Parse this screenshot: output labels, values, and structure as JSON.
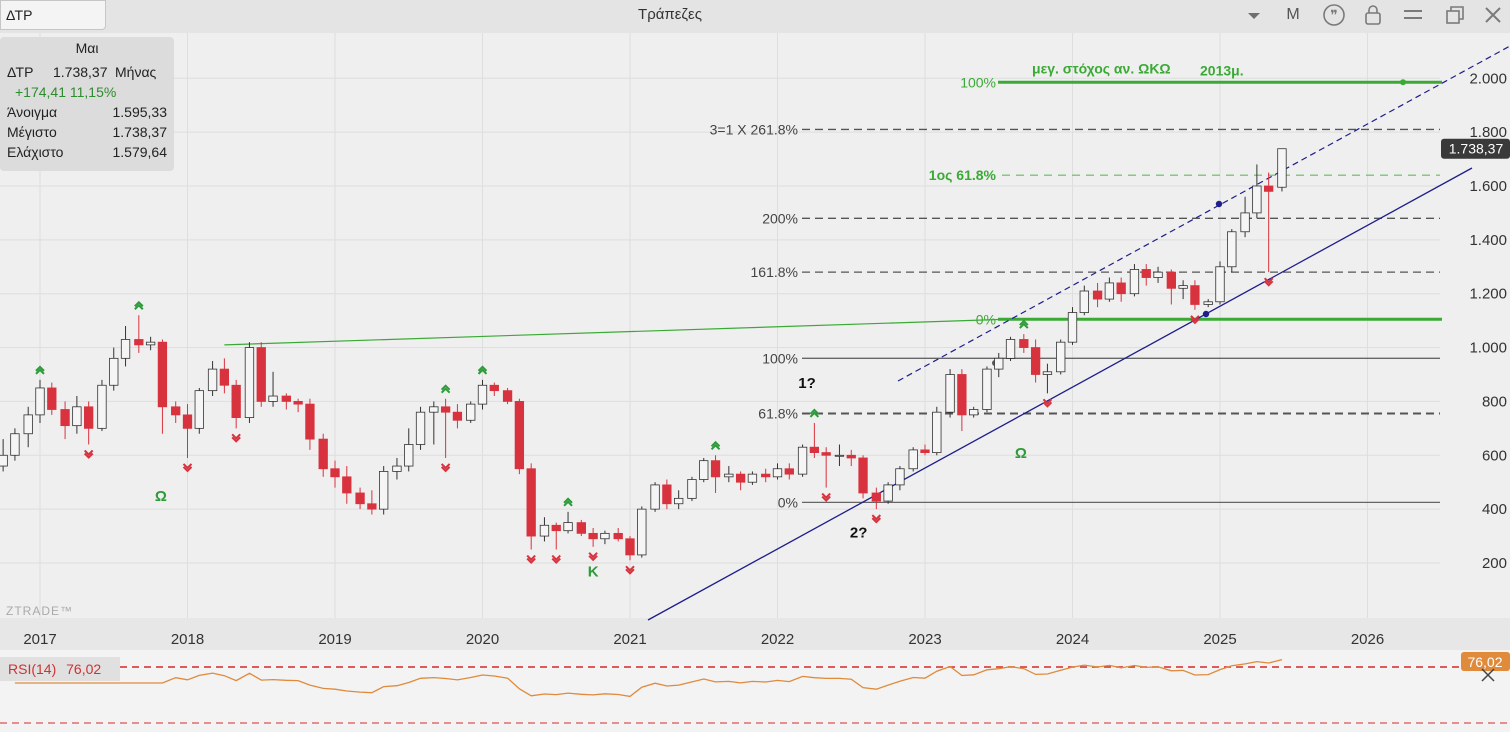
{
  "app": {
    "symbol": "ΔΤΡ",
    "title": "Τράπεζες",
    "mode_label": "M",
    "logo": "ZTRADE™"
  },
  "toolbar": {
    "icons": [
      "chevron-down-icon",
      "quote-icon",
      "lock-icon",
      "menu-icon",
      "window-restore-icon",
      "close-icon"
    ]
  },
  "infobox": {
    "month": "Μαι",
    "symbol": "ΔΤΡ",
    "close": "1.738,37",
    "period": "Μήνας",
    "change": "+174,41 11,15%",
    "open_label": "Άνοιγμα",
    "open": "1.595,33",
    "high_label": "Μέγιστο",
    "high": "1.738,37",
    "low_label": "Ελάχιστο",
    "low": "1.579,64"
  },
  "chart_data": {
    "type": "candlestick",
    "period": "monthly",
    "ylim": [
      80,
      2060
    ],
    "xlim": [
      2016.72,
      2026.95
    ],
    "y_ticks": [
      200,
      400,
      600,
      800,
      1000,
      1200,
      1400,
      1600,
      1800,
      2000
    ],
    "y_tick_labels": [
      "200",
      "400",
      "600",
      "800",
      "1.000",
      "1.200",
      "1.400",
      "1.600",
      "1.800",
      "2.000"
    ],
    "x_ticks": [
      2017,
      2018,
      2019,
      2020,
      2021,
      2022,
      2023,
      2024,
      2025,
      2026
    ],
    "x_tick_labels": [
      "2017",
      "2018",
      "2019",
      "2020",
      "2021",
      "2022",
      "2023",
      "2024",
      "2025",
      "2026"
    ],
    "last_price_label": "1.738,37",
    "colors": {
      "up": "#f5f5f5",
      "down": "#d8323e",
      "fib": "#555555",
      "green": "#3aaa35",
      "channel": "#1e1e8c",
      "rsi": "#e08a3c",
      "rsi_ref": "#d42a2a"
    },
    "candles": [
      {
        "t": 2016.75,
        "o": 560,
        "h": 660,
        "l": 540,
        "c": 600
      },
      {
        "t": 2016.83,
        "o": 600,
        "h": 700,
        "l": 580,
        "c": 680
      },
      {
        "t": 2016.92,
        "o": 680,
        "h": 780,
        "l": 630,
        "c": 750
      },
      {
        "t": 2017.0,
        "o": 750,
        "h": 880,
        "l": 720,
        "c": 850
      },
      {
        "t": 2017.08,
        "o": 850,
        "h": 870,
        "l": 750,
        "c": 770
      },
      {
        "t": 2017.17,
        "o": 770,
        "h": 800,
        "l": 660,
        "c": 710
      },
      {
        "t": 2017.25,
        "o": 710,
        "h": 820,
        "l": 680,
        "c": 780
      },
      {
        "t": 2017.33,
        "o": 780,
        "h": 800,
        "l": 640,
        "c": 700
      },
      {
        "t": 2017.42,
        "o": 700,
        "h": 880,
        "l": 690,
        "c": 860
      },
      {
        "t": 2017.5,
        "o": 860,
        "h": 1000,
        "l": 840,
        "c": 960
      },
      {
        "t": 2017.58,
        "o": 960,
        "h": 1080,
        "l": 930,
        "c": 1030
      },
      {
        "t": 2017.67,
        "o": 1030,
        "h": 1120,
        "l": 980,
        "c": 1010
      },
      {
        "t": 2017.75,
        "o": 1010,
        "h": 1040,
        "l": 990,
        "c": 1020
      },
      {
        "t": 2017.83,
        "o": 1020,
        "h": 1030,
        "l": 680,
        "c": 780
      },
      {
        "t": 2017.92,
        "o": 780,
        "h": 800,
        "l": 720,
        "c": 750
      },
      {
        "t": 2018.0,
        "o": 750,
        "h": 790,
        "l": 590,
        "c": 700
      },
      {
        "t": 2018.08,
        "o": 700,
        "h": 850,
        "l": 680,
        "c": 840
      },
      {
        "t": 2018.17,
        "o": 840,
        "h": 950,
        "l": 820,
        "c": 920
      },
      {
        "t": 2018.25,
        "o": 920,
        "h": 960,
        "l": 830,
        "c": 860
      },
      {
        "t": 2018.33,
        "o": 860,
        "h": 880,
        "l": 700,
        "c": 740
      },
      {
        "t": 2018.42,
        "o": 740,
        "h": 1020,
        "l": 720,
        "c": 1000
      },
      {
        "t": 2018.5,
        "o": 1000,
        "h": 1020,
        "l": 780,
        "c": 800
      },
      {
        "t": 2018.58,
        "o": 800,
        "h": 910,
        "l": 780,
        "c": 820
      },
      {
        "t": 2018.67,
        "o": 820,
        "h": 830,
        "l": 770,
        "c": 800
      },
      {
        "t": 2018.75,
        "o": 800,
        "h": 810,
        "l": 760,
        "c": 790
      },
      {
        "t": 2018.83,
        "o": 790,
        "h": 810,
        "l": 620,
        "c": 660
      },
      {
        "t": 2018.92,
        "o": 660,
        "h": 680,
        "l": 520,
        "c": 550
      },
      {
        "t": 2019.0,
        "o": 550,
        "h": 580,
        "l": 480,
        "c": 520
      },
      {
        "t": 2019.08,
        "o": 520,
        "h": 560,
        "l": 420,
        "c": 460
      },
      {
        "t": 2019.17,
        "o": 460,
        "h": 480,
        "l": 400,
        "c": 420
      },
      {
        "t": 2019.25,
        "o": 420,
        "h": 470,
        "l": 380,
        "c": 400
      },
      {
        "t": 2019.33,
        "o": 400,
        "h": 560,
        "l": 380,
        "c": 540
      },
      {
        "t": 2019.42,
        "o": 540,
        "h": 590,
        "l": 510,
        "c": 560
      },
      {
        "t": 2019.5,
        "o": 560,
        "h": 700,
        "l": 540,
        "c": 640
      },
      {
        "t": 2019.58,
        "o": 640,
        "h": 780,
        "l": 620,
        "c": 760
      },
      {
        "t": 2019.67,
        "o": 760,
        "h": 800,
        "l": 640,
        "c": 780
      },
      {
        "t": 2019.75,
        "o": 780,
        "h": 810,
        "l": 590,
        "c": 760
      },
      {
        "t": 2019.83,
        "o": 760,
        "h": 790,
        "l": 700,
        "c": 730
      },
      {
        "t": 2019.92,
        "o": 730,
        "h": 800,
        "l": 720,
        "c": 790
      },
      {
        "t": 2020.0,
        "o": 790,
        "h": 880,
        "l": 770,
        "c": 860
      },
      {
        "t": 2020.08,
        "o": 860,
        "h": 870,
        "l": 820,
        "c": 840
      },
      {
        "t": 2020.17,
        "o": 840,
        "h": 850,
        "l": 790,
        "c": 800
      },
      {
        "t": 2020.25,
        "o": 800,
        "h": 810,
        "l": 530,
        "c": 550
      },
      {
        "t": 2020.33,
        "o": 550,
        "h": 570,
        "l": 250,
        "c": 300
      },
      {
        "t": 2020.42,
        "o": 300,
        "h": 370,
        "l": 280,
        "c": 340
      },
      {
        "t": 2020.5,
        "o": 340,
        "h": 350,
        "l": 250,
        "c": 320
      },
      {
        "t": 2020.58,
        "o": 320,
        "h": 390,
        "l": 310,
        "c": 350
      },
      {
        "t": 2020.67,
        "o": 350,
        "h": 360,
        "l": 300,
        "c": 310
      },
      {
        "t": 2020.75,
        "o": 310,
        "h": 330,
        "l": 260,
        "c": 290
      },
      {
        "t": 2020.83,
        "o": 290,
        "h": 320,
        "l": 270,
        "c": 310
      },
      {
        "t": 2020.92,
        "o": 310,
        "h": 330,
        "l": 280,
        "c": 290
      },
      {
        "t": 2021.0,
        "o": 290,
        "h": 300,
        "l": 210,
        "c": 230
      },
      {
        "t": 2021.08,
        "o": 230,
        "h": 410,
        "l": 220,
        "c": 400
      },
      {
        "t": 2021.17,
        "o": 400,
        "h": 500,
        "l": 390,
        "c": 490
      },
      {
        "t": 2021.25,
        "o": 490,
        "h": 510,
        "l": 400,
        "c": 420
      },
      {
        "t": 2021.33,
        "o": 420,
        "h": 470,
        "l": 400,
        "c": 440
      },
      {
        "t": 2021.42,
        "o": 440,
        "h": 520,
        "l": 430,
        "c": 510
      },
      {
        "t": 2021.5,
        "o": 510,
        "h": 590,
        "l": 500,
        "c": 580
      },
      {
        "t": 2021.58,
        "o": 580,
        "h": 600,
        "l": 460,
        "c": 520
      },
      {
        "t": 2021.67,
        "o": 520,
        "h": 560,
        "l": 500,
        "c": 530
      },
      {
        "t": 2021.75,
        "o": 530,
        "h": 540,
        "l": 470,
        "c": 500
      },
      {
        "t": 2021.83,
        "o": 500,
        "h": 540,
        "l": 490,
        "c": 530
      },
      {
        "t": 2021.92,
        "o": 530,
        "h": 550,
        "l": 500,
        "c": 520
      },
      {
        "t": 2022.0,
        "o": 520,
        "h": 570,
        "l": 510,
        "c": 550
      },
      {
        "t": 2022.08,
        "o": 550,
        "h": 570,
        "l": 510,
        "c": 530
      },
      {
        "t": 2022.17,
        "o": 530,
        "h": 640,
        "l": 520,
        "c": 630
      },
      {
        "t": 2022.25,
        "o": 630,
        "h": 720,
        "l": 590,
        "c": 610
      },
      {
        "t": 2022.33,
        "o": 610,
        "h": 630,
        "l": 480,
        "c": 600
      },
      {
        "t": 2022.42,
        "o": 600,
        "h": 640,
        "l": 560,
        "c": 600
      },
      {
        "t": 2022.5,
        "o": 600,
        "h": 620,
        "l": 560,
        "c": 590
      },
      {
        "t": 2022.58,
        "o": 590,
        "h": 600,
        "l": 440,
        "c": 460
      },
      {
        "t": 2022.67,
        "o": 460,
        "h": 480,
        "l": 400,
        "c": 430
      },
      {
        "t": 2022.75,
        "o": 430,
        "h": 500,
        "l": 420,
        "c": 490
      },
      {
        "t": 2022.83,
        "o": 490,
        "h": 560,
        "l": 470,
        "c": 550
      },
      {
        "t": 2022.92,
        "o": 550,
        "h": 630,
        "l": 540,
        "c": 620
      },
      {
        "t": 2023.0,
        "o": 620,
        "h": 640,
        "l": 600,
        "c": 610
      },
      {
        "t": 2023.08,
        "o": 610,
        "h": 780,
        "l": 600,
        "c": 760
      },
      {
        "t": 2023.17,
        "o": 760,
        "h": 920,
        "l": 740,
        "c": 900
      },
      {
        "t": 2023.25,
        "o": 900,
        "h": 920,
        "l": 690,
        "c": 750
      },
      {
        "t": 2023.33,
        "o": 750,
        "h": 780,
        "l": 740,
        "c": 770
      },
      {
        "t": 2023.42,
        "o": 770,
        "h": 930,
        "l": 760,
        "c": 920
      },
      {
        "t": 2023.5,
        "o": 920,
        "h": 980,
        "l": 890,
        "c": 960
      },
      {
        "t": 2023.58,
        "o": 960,
        "h": 1040,
        "l": 950,
        "c": 1030
      },
      {
        "t": 2023.67,
        "o": 1030,
        "h": 1050,
        "l": 980,
        "c": 1000
      },
      {
        "t": 2023.75,
        "o": 1000,
        "h": 1030,
        "l": 870,
        "c": 900
      },
      {
        "t": 2023.83,
        "o": 900,
        "h": 940,
        "l": 830,
        "c": 910
      },
      {
        "t": 2023.92,
        "o": 910,
        "h": 1030,
        "l": 900,
        "c": 1020
      },
      {
        "t": 2024.0,
        "o": 1020,
        "h": 1150,
        "l": 1010,
        "c": 1130
      },
      {
        "t": 2024.08,
        "o": 1130,
        "h": 1230,
        "l": 1120,
        "c": 1210
      },
      {
        "t": 2024.17,
        "o": 1210,
        "h": 1240,
        "l": 1150,
        "c": 1180
      },
      {
        "t": 2024.25,
        "o": 1180,
        "h": 1260,
        "l": 1170,
        "c": 1240
      },
      {
        "t": 2024.33,
        "o": 1240,
        "h": 1260,
        "l": 1170,
        "c": 1200
      },
      {
        "t": 2024.42,
        "o": 1200,
        "h": 1310,
        "l": 1190,
        "c": 1290
      },
      {
        "t": 2024.5,
        "o": 1290,
        "h": 1310,
        "l": 1230,
        "c": 1260
      },
      {
        "t": 2024.58,
        "o": 1260,
        "h": 1300,
        "l": 1240,
        "c": 1280
      },
      {
        "t": 2024.67,
        "o": 1280,
        "h": 1290,
        "l": 1160,
        "c": 1220
      },
      {
        "t": 2024.75,
        "o": 1220,
        "h": 1250,
        "l": 1180,
        "c": 1230
      },
      {
        "t": 2024.83,
        "o": 1230,
        "h": 1250,
        "l": 1140,
        "c": 1160
      },
      {
        "t": 2024.92,
        "o": 1160,
        "h": 1180,
        "l": 1150,
        "c": 1170
      },
      {
        "t": 2025.0,
        "o": 1170,
        "h": 1320,
        "l": 1160,
        "c": 1300
      },
      {
        "t": 2025.08,
        "o": 1300,
        "h": 1440,
        "l": 1280,
        "c": 1430
      },
      {
        "t": 2025.17,
        "o": 1430,
        "h": 1560,
        "l": 1410,
        "c": 1500
      },
      {
        "t": 2025.25,
        "o": 1500,
        "h": 1680,
        "l": 1480,
        "c": 1600
      },
      {
        "t": 2025.33,
        "o": 1600,
        "h": 1650,
        "l": 1280,
        "c": 1580
      },
      {
        "t": 2025.42,
        "o": 1595.33,
        "h": 1738.37,
        "l": 1579.64,
        "c": 1738.37
      }
    ],
    "fib_levels": [
      {
        "label": "0%",
        "value": 425
      },
      {
        "label": "61.8%",
        "value": 755
      },
      {
        "label": "100%",
        "value": 960
      },
      {
        "label": "161.8%",
        "value": 1280
      },
      {
        "label": "200%",
        "value": 1480
      },
      {
        "label": "3=1 X  261.8%",
        "value": 1810
      }
    ],
    "green_levels": [
      {
        "label": "1ος 61.8%",
        "value": 1640
      },
      {
        "label": "0%",
        "value": 1105
      }
    ],
    "target": {
      "pct": "100%",
      "value": 1985,
      "text": "μεγ. στόχος αν. ΩΚΩ",
      "year": "2013μ."
    },
    "annotations": [
      {
        "text": "Ω",
        "t": 2017.82,
        "y": 430,
        "color": "green"
      },
      {
        "text": "K",
        "t": 2020.75,
        "y": 150,
        "color": "green"
      },
      {
        "text": "Ω",
        "t": 2023.65,
        "y": 590,
        "color": "green"
      },
      {
        "text": "1?",
        "t": 2022.2,
        "y": 850,
        "color": "black"
      },
      {
        "text": "2?",
        "t": 2022.55,
        "y": 295,
        "color": "black"
      }
    ],
    "rsi": {
      "label": "RSI(14)",
      "value": "76,02",
      "level": 70,
      "ylim": [
        0,
        100
      ]
    }
  }
}
